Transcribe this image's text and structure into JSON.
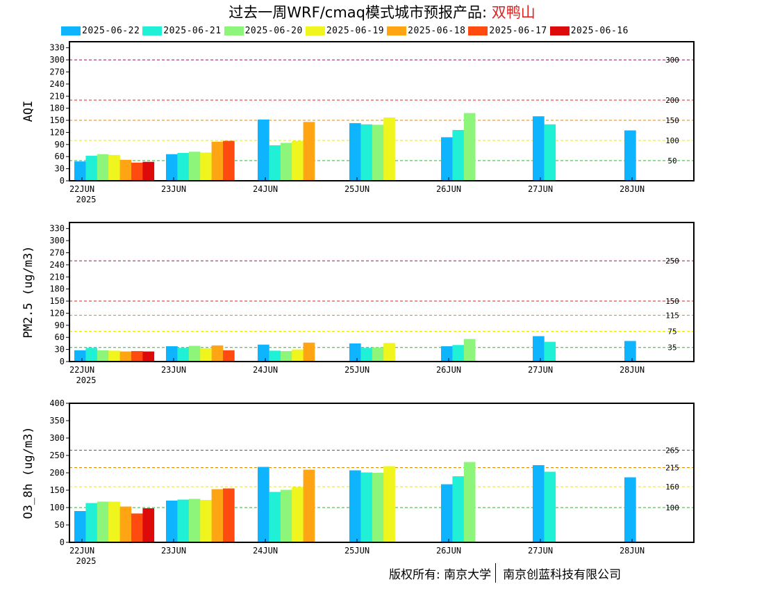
{
  "title": {
    "main": "过去一周WRF/cmaq模式城市预报产品: ",
    "station": "双鸭山"
  },
  "legend": [
    {
      "label": "2025-06-22",
      "color": "#0fb4ff"
    },
    {
      "label": "2025-06-21",
      "color": "#1ff0d6"
    },
    {
      "label": "2025-06-20",
      "color": "#8cf57a"
    },
    {
      "label": "2025-06-19",
      "color": "#f0f51e"
    },
    {
      "label": "2025-06-18",
      "color": "#ffa514"
    },
    {
      "label": "2025-06-17",
      "color": "#ff4b0f"
    },
    {
      "label": "2025-06-16",
      "color": "#dc0a0a"
    }
  ],
  "footer": {
    "left": "版权所有: 南京大学",
    "right": "南京创蓝科技有限公司"
  },
  "chart_data": [
    {
      "type": "bar",
      "ylabel": "AQI",
      "ylim": [
        0,
        345
      ],
      "yticks": [
        0,
        30,
        60,
        90,
        120,
        150,
        180,
        210,
        240,
        270,
        300,
        330
      ],
      "categories": [
        "22JUN",
        "23JUN",
        "24JUN",
        "25JUN",
        "26JUN",
        "27JUN",
        "28JUN"
      ],
      "first_tick_sublabel": "2025",
      "thresholds": [
        {
          "value": 50,
          "label": "50",
          "color": "#22bb22"
        },
        {
          "value": 100,
          "label": "100",
          "color": "#e8e800"
        },
        {
          "value": 150,
          "label": "150",
          "color": "#e08a00"
        },
        {
          "value": 200,
          "label": "200",
          "color": "#dd2222"
        },
        {
          "value": 300,
          "label": "300",
          "color": "#9a1060"
        }
      ],
      "series": [
        {
          "name": "2025-06-22",
          "values": [
            48,
            66,
            152,
            143,
            108,
            160,
            125
          ]
        },
        {
          "name": "2025-06-21",
          "values": [
            62,
            69,
            88,
            140,
            126,
            140,
            null
          ]
        },
        {
          "name": "2025-06-20",
          "values": [
            66,
            72,
            94,
            139,
            168,
            null,
            null
          ]
        },
        {
          "name": "2025-06-19",
          "values": [
            64,
            70,
            99,
            157,
            null,
            null,
            null
          ]
        },
        {
          "name": "2025-06-18",
          "values": [
            52,
            97,
            146,
            null,
            null,
            null,
            null
          ]
        },
        {
          "name": "2025-06-17",
          "values": [
            45,
            99,
            null,
            null,
            null,
            null,
            null
          ]
        },
        {
          "name": "2025-06-16",
          "values": [
            47,
            null,
            null,
            null,
            null,
            null,
            null
          ]
        }
      ]
    },
    {
      "type": "bar",
      "ylabel": "PM2.5 (ug/m3)",
      "ylim": [
        0,
        345
      ],
      "yticks": [
        0,
        30,
        60,
        90,
        120,
        150,
        180,
        210,
        240,
        270,
        300,
        330
      ],
      "categories": [
        "22JUN",
        "23JUN",
        "24JUN",
        "25JUN",
        "26JUN",
        "27JUN",
        "28JUN"
      ],
      "first_tick_sublabel": "2025",
      "thresholds": [
        {
          "value": 35,
          "label": "35",
          "color": "#22bb22"
        },
        {
          "value": 75,
          "label": "75",
          "color": "#e8e800"
        },
        {
          "value": 115,
          "label": "115",
          "color": "#e08a00"
        },
        {
          "value": 150,
          "label": "150",
          "color": "#dd2222"
        },
        {
          "value": 250,
          "label": "250",
          "color": "#9a1060"
        }
      ],
      "series": [
        {
          "name": "2025-06-22",
          "values": [
            28,
            38,
            42,
            45,
            38,
            63,
            51
          ]
        },
        {
          "name": "2025-06-21",
          "values": [
            34,
            34,
            27,
            34,
            41,
            49,
            null
          ]
        },
        {
          "name": "2025-06-20",
          "values": [
            28,
            39,
            26,
            35,
            56,
            null,
            null
          ]
        },
        {
          "name": "2025-06-19",
          "values": [
            27,
            33,
            30,
            46,
            null,
            null,
            null
          ]
        },
        {
          "name": "2025-06-18",
          "values": [
            25,
            40,
            47,
            null,
            null,
            null,
            null
          ]
        },
        {
          "name": "2025-06-17",
          "values": [
            26,
            28,
            null,
            null,
            null,
            null,
            null
          ]
        },
        {
          "name": "2025-06-16",
          "values": [
            25,
            null,
            null,
            null,
            null,
            null,
            null
          ]
        }
      ]
    },
    {
      "type": "bar",
      "ylabel": "O3_8h (ug/m3)",
      "ylim": [
        0,
        400
      ],
      "yticks": [
        0,
        50,
        100,
        150,
        200,
        250,
        300,
        350,
        400
      ],
      "categories": [
        "22JUN",
        "23JUN",
        "24JUN",
        "25JUN",
        "26JUN",
        "27JUN",
        "28JUN"
      ],
      "first_tick_sublabel": "2025",
      "thresholds": [
        {
          "value": 100,
          "label": "100",
          "color": "#22bb22"
        },
        {
          "value": 160,
          "label": "160",
          "color": "#e8e800"
        },
        {
          "value": 215,
          "label": "215",
          "color": "#e08a00"
        },
        {
          "value": 265,
          "label": "265",
          "color": "#dd2222"
        }
      ],
      "series": [
        {
          "name": "2025-06-22",
          "values": [
            90,
            120,
            217,
            207,
            167,
            222,
            187
          ]
        },
        {
          "name": "2025-06-21",
          "values": [
            113,
            123,
            145,
            201,
            190,
            203,
            null
          ]
        },
        {
          "name": "2025-06-20",
          "values": [
            117,
            125,
            151,
            200,
            231,
            null,
            null
          ]
        },
        {
          "name": "2025-06-19",
          "values": [
            117,
            122,
            159,
            219,
            null,
            null,
            null
          ]
        },
        {
          "name": "2025-06-18",
          "values": [
            103,
            153,
            209,
            null,
            null,
            null,
            null
          ]
        },
        {
          "name": "2025-06-17",
          "values": [
            83,
            155,
            null,
            null,
            null,
            null,
            null
          ]
        },
        {
          "name": "2025-06-16",
          "values": [
            98,
            null,
            null,
            null,
            null,
            null,
            null
          ]
        }
      ]
    }
  ]
}
